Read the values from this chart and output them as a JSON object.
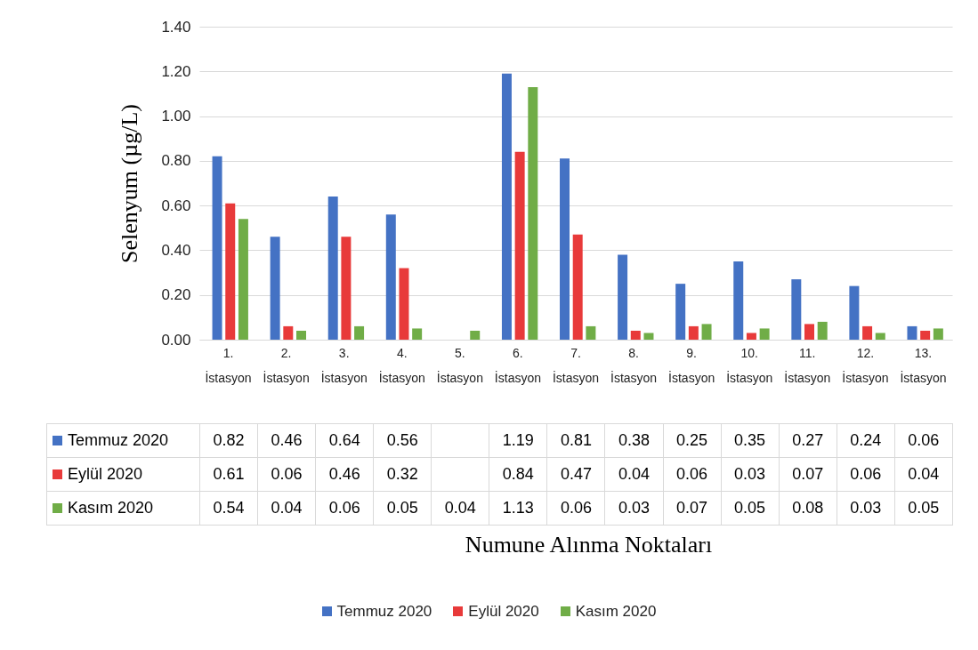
{
  "chart_data": {
    "type": "bar",
    "ylabel": "Selenyum  (µg/L)",
    "annotations": [
      "Numune Alınma Noktaları"
    ],
    "categories": [
      "1. İstasyon",
      "2. İstasyon",
      "3. İstasyon",
      "4. İstasyon",
      "5. İstasyon",
      "6. İstasyon",
      "7. İstasyon",
      "8. İstasyon",
      "9. İstasyon",
      "10. İstasyon",
      "11. İstasyon",
      "12. İstasyon",
      "13. İstasyon"
    ],
    "series": [
      {
        "name": "Temmuz 2020",
        "color": "#4472c4",
        "values": [
          0.82,
          0.46,
          0.64,
          0.56,
          null,
          1.19,
          0.81,
          0.38,
          0.25,
          0.35,
          0.27,
          0.24,
          0.06
        ]
      },
      {
        "name": "Eylül 2020",
        "color": "#e83a3a",
        "values": [
          0.61,
          0.06,
          0.46,
          0.32,
          null,
          0.84,
          0.47,
          0.04,
          0.06,
          0.03,
          0.07,
          0.06,
          0.04
        ]
      },
      {
        "name": "Kasım 2020",
        "color": "#70ad47",
        "values": [
          0.54,
          0.04,
          0.06,
          0.05,
          0.04,
          1.13,
          0.06,
          0.03,
          0.07,
          0.05,
          0.08,
          0.03,
          0.05
        ]
      }
    ],
    "ylim": [
      0,
      1.4
    ],
    "yticks": [
      {
        "value": 0,
        "label": "0.00"
      },
      {
        "value": 0.2,
        "label": "0.20"
      },
      {
        "value": 0.4,
        "label": "0.40"
      },
      {
        "value": 0.6,
        "label": "0.60"
      },
      {
        "value": 0.8,
        "label": "0.80"
      },
      {
        "value": 1,
        "label": "1.00"
      },
      {
        "value": 1.2,
        "label": "1.20"
      },
      {
        "value": 1.4,
        "label": "1.40"
      }
    ],
    "grid": "y",
    "legend": "bottom",
    "data_labels": true
  }
}
